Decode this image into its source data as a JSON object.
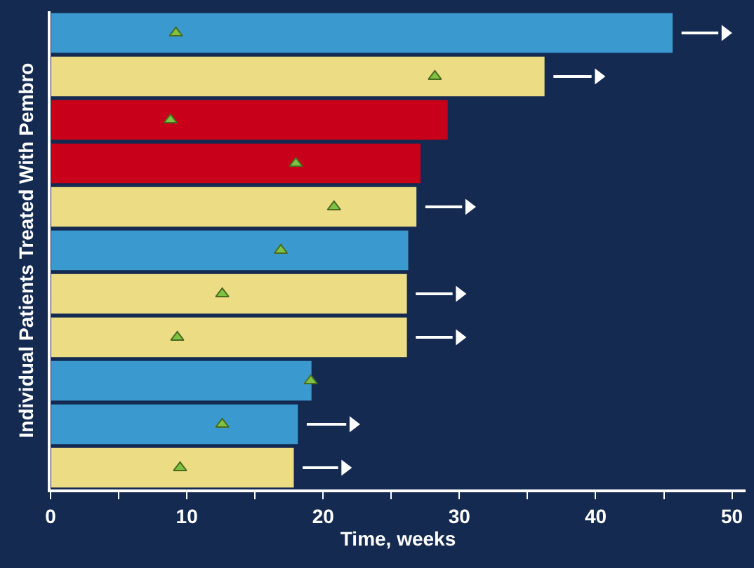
{
  "chart_data": {
    "type": "bar",
    "orientation": "horizontal",
    "xlabel": "Time, weeks",
    "ylabel": "Individual Patients Treated With Pembro",
    "categories": [
      null,
      null,
      null,
      null,
      null,
      null,
      null,
      null,
      null,
      null,
      null
    ],
    "xlim": [
      0,
      51
    ],
    "xticks": [
      0,
      {
        "value": 5,
        "label": null
      },
      10,
      {
        "value": 15,
        "label": null
      },
      20,
      {
        "value": 25,
        "label": null
      },
      30,
      {
        "value": 35,
        "label": null
      },
      40,
      {
        "value": 45,
        "label": null
      },
      50
    ],
    "series": [
      {
        "colors": [
          "#3a9ad0",
          "#ecdc84",
          "#c8001a",
          "#c8001a",
          "#ecdc84",
          "#3a9ad0",
          "#ecdc84",
          "#ecdc84",
          "#3a9ad0",
          "#3a9ad0",
          "#ecdc84"
        ],
        "values": [
          45.7,
          36.3,
          29.2,
          27.2,
          26.9,
          26.3,
          26.2,
          26.2,
          19.2,
          18.2,
          17.9
        ]
      },
      {
        "type": "scatter",
        "marker": "triangle",
        "color": "#7dc242",
        "values": [
          9.2,
          28.2,
          8.8,
          18,
          20.8,
          16.9,
          12.6,
          9.3,
          19.1,
          12.6,
          9.5
        ]
      },
      {
        "type": "scatter",
        "marker": "triangle",
        "color": "#ffffff",
        "values": [
          49.5,
          40.2,
          null,
          null,
          30.7,
          null,
          30,
          30,
          null,
          22.2,
          21.6
        ]
      }
    ]
  }
}
